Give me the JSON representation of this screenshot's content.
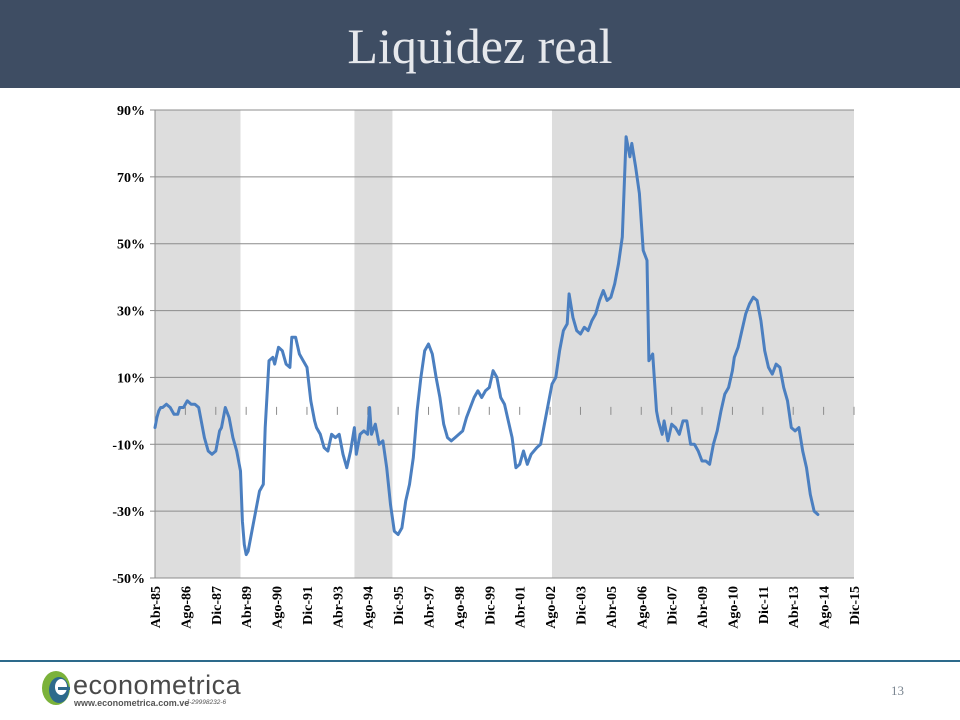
{
  "slide": {
    "title": "Liquidez real",
    "page_number": "13"
  },
  "logo": {
    "name": "econometrica",
    "url": "www.econometrica.com.ve",
    "rif": "J-29998232-6"
  },
  "colors": {
    "header": "#3e4d63",
    "line": "#4b7fc0",
    "shade": "#dddddd",
    "grid": "#8c8c8c",
    "footer_rule": "#2d6a8b"
  },
  "chart_data": {
    "type": "line",
    "x_start": "1985-04",
    "x_end": "2015-12",
    "ylim": [
      -50,
      90
    ],
    "yticks": [
      -50,
      -30,
      -10,
      10,
      30,
      50,
      70,
      90
    ],
    "ytick_labels": [
      "-50%",
      "-30%",
      "-10%",
      "10%",
      "30%",
      "50%",
      "70%",
      "90%"
    ],
    "xtick_labels": [
      "Abr-85",
      "Ago-86",
      "Dic-87",
      "Abr-89",
      "Ago-90",
      "Dic-91",
      "Abr-93",
      "Ago-94",
      "Dic-95",
      "Abr-97",
      "Ago-98",
      "Dic-99",
      "Abr-01",
      "Ago-02",
      "Dic-03",
      "Abr-05",
      "Ago-06",
      "Dic-07",
      "Abr-09",
      "Ago-10",
      "Dic-11",
      "Abr-13",
      "Ago-14",
      "Dic-15"
    ],
    "xtick_dates": [
      "1985-04",
      "1986-08",
      "1987-12",
      "1989-04",
      "1990-08",
      "1991-12",
      "1993-04",
      "1994-08",
      "1995-12",
      "1997-04",
      "1998-08",
      "1999-12",
      "2001-04",
      "2002-08",
      "2003-12",
      "2005-04",
      "2006-08",
      "2007-12",
      "2009-04",
      "2010-08",
      "2011-12",
      "2013-04",
      "2014-08",
      "2015-12"
    ],
    "shaded_periods": [
      [
        "1985-04",
        "1989-01"
      ],
      [
        "1994-01",
        "1995-09"
      ],
      [
        "2002-09",
        "2015-12"
      ]
    ],
    "grid": true,
    "legend": "none",
    "series": [
      {
        "points": [
          [
            "1985-04",
            -5
          ],
          [
            "1985-05",
            -2
          ],
          [
            "1985-06",
            0
          ],
          [
            "1985-07",
            1
          ],
          [
            "1985-08",
            1
          ],
          [
            "1985-10",
            2
          ],
          [
            "1985-12",
            1
          ],
          [
            "1986-02",
            -1
          ],
          [
            "1986-04",
            -1
          ],
          [
            "1986-05",
            1
          ],
          [
            "1986-07",
            1
          ],
          [
            "1986-09",
            3
          ],
          [
            "1986-11",
            2
          ],
          [
            "1987-01",
            2
          ],
          [
            "1987-03",
            1
          ],
          [
            "1987-04",
            -2
          ],
          [
            "1987-06",
            -8
          ],
          [
            "1987-08",
            -12
          ],
          [
            "1987-10",
            -13
          ],
          [
            "1987-12",
            -12
          ],
          [
            "1988-02",
            -6
          ],
          [
            "1988-03",
            -5
          ],
          [
            "1988-05",
            1
          ],
          [
            "1988-07",
            -2
          ],
          [
            "1988-09",
            -8
          ],
          [
            "1988-11",
            -12
          ],
          [
            "1989-01",
            -18
          ],
          [
            "1989-02",
            -33
          ],
          [
            "1989-03",
            -40
          ],
          [
            "1989-04",
            -43
          ],
          [
            "1989-05",
            -42
          ],
          [
            "1989-07",
            -36
          ],
          [
            "1989-09",
            -30
          ],
          [
            "1989-11",
            -24
          ],
          [
            "1990-01",
            -22
          ],
          [
            "1990-02",
            -5
          ],
          [
            "1990-04",
            15
          ],
          [
            "1990-06",
            16
          ],
          [
            "1990-07",
            14
          ],
          [
            "1990-09",
            19
          ],
          [
            "1990-11",
            18
          ],
          [
            "1991-01",
            14
          ],
          [
            "1991-03",
            13
          ],
          [
            "1991-04",
            22
          ],
          [
            "1991-06",
            22
          ],
          [
            "1991-08",
            17
          ],
          [
            "1991-10",
            15
          ],
          [
            "1991-12",
            13
          ],
          [
            "1992-02",
            3
          ],
          [
            "1992-04",
            -3
          ],
          [
            "1992-05",
            -5
          ],
          [
            "1992-07",
            -7
          ],
          [
            "1992-09",
            -11
          ],
          [
            "1992-11",
            -12
          ],
          [
            "1993-01",
            -7
          ],
          [
            "1993-03",
            -8
          ],
          [
            "1993-05",
            -7
          ],
          [
            "1993-07",
            -13
          ],
          [
            "1993-09",
            -17
          ],
          [
            "1993-11",
            -12
          ],
          [
            "1994-01",
            -5
          ],
          [
            "1994-02",
            -13
          ],
          [
            "1994-04",
            -7
          ],
          [
            "1994-06",
            -6
          ],
          [
            "1994-08",
            -7
          ],
          [
            "1994-09",
            1
          ],
          [
            "1994-10",
            -7
          ],
          [
            "1994-12",
            -4
          ],
          [
            "1995-02",
            -10
          ],
          [
            "1995-04",
            -9
          ],
          [
            "1995-06",
            -17
          ],
          [
            "1995-08",
            -28
          ],
          [
            "1995-10",
            -36
          ],
          [
            "1995-12",
            -37
          ],
          [
            "1996-02",
            -35
          ],
          [
            "1996-04",
            -27
          ],
          [
            "1996-06",
            -22
          ],
          [
            "1996-08",
            -14
          ],
          [
            "1996-10",
            0
          ],
          [
            "1996-12",
            10
          ],
          [
            "1997-02",
            18
          ],
          [
            "1997-04",
            20
          ],
          [
            "1997-06",
            17
          ],
          [
            "1997-08",
            10
          ],
          [
            "1997-10",
            4
          ],
          [
            "1997-12",
            -4
          ],
          [
            "1998-02",
            -8
          ],
          [
            "1998-04",
            -9
          ],
          [
            "1998-06",
            -8
          ],
          [
            "1998-08",
            -7
          ],
          [
            "1998-10",
            -6
          ],
          [
            "1998-12",
            -2
          ],
          [
            "1999-02",
            1
          ],
          [
            "1999-04",
            4
          ],
          [
            "1999-06",
            6
          ],
          [
            "1999-08",
            4
          ],
          [
            "1999-10",
            6
          ],
          [
            "1999-12",
            7
          ],
          [
            "2000-02",
            12
          ],
          [
            "2000-04",
            10
          ],
          [
            "2000-06",
            4
          ],
          [
            "2000-08",
            2
          ],
          [
            "2000-10",
            -3
          ],
          [
            "2000-12",
            -8
          ],
          [
            "2001-02",
            -17
          ],
          [
            "2001-04",
            -16
          ],
          [
            "2001-06",
            -12
          ],
          [
            "2001-08",
            -16
          ],
          [
            "2001-10",
            -13
          ],
          [
            "2002-01",
            -11
          ],
          [
            "2002-03",
            -10
          ],
          [
            "2002-05",
            -4
          ],
          [
            "2002-07",
            2
          ],
          [
            "2002-09",
            8
          ],
          [
            "2002-11",
            10
          ],
          [
            "2003-01",
            18
          ],
          [
            "2003-03",
            24
          ],
          [
            "2003-05",
            26
          ],
          [
            "2003-06",
            35
          ],
          [
            "2003-08",
            28
          ],
          [
            "2003-10",
            24
          ],
          [
            "2003-12",
            23
          ],
          [
            "2004-02",
            25
          ],
          [
            "2004-04",
            24
          ],
          [
            "2004-06",
            27
          ],
          [
            "2004-08",
            29
          ],
          [
            "2004-10",
            33
          ],
          [
            "2004-12",
            36
          ],
          [
            "2005-02",
            33
          ],
          [
            "2005-04",
            34
          ],
          [
            "2005-06",
            38
          ],
          [
            "2005-08",
            44
          ],
          [
            "2005-10",
            52
          ],
          [
            "2005-12",
            82
          ],
          [
            "2006-02",
            76
          ],
          [
            "2006-03",
            80
          ],
          [
            "2006-05",
            73
          ],
          [
            "2006-07",
            65
          ],
          [
            "2006-09",
            48
          ],
          [
            "2006-11",
            45
          ],
          [
            "2006-12",
            15
          ],
          [
            "2007-02",
            17
          ],
          [
            "2007-04",
            0
          ],
          [
            "2007-05",
            -3
          ],
          [
            "2007-07",
            -7
          ],
          [
            "2007-08",
            -3
          ],
          [
            "2007-10",
            -9
          ],
          [
            "2007-12",
            -4
          ],
          [
            "2008-02",
            -5
          ],
          [
            "2008-04",
            -7
          ],
          [
            "2008-06",
            -3
          ],
          [
            "2008-08",
            -3
          ],
          [
            "2008-10",
            -10
          ],
          [
            "2008-12",
            -10
          ],
          [
            "2009-02",
            -12
          ],
          [
            "2009-04",
            -15
          ],
          [
            "2009-06",
            -15
          ],
          [
            "2009-08",
            -16
          ],
          [
            "2009-10",
            -10
          ],
          [
            "2009-12",
            -6
          ],
          [
            "2010-02",
            0
          ],
          [
            "2010-04",
            5
          ],
          [
            "2010-06",
            7
          ],
          [
            "2010-08",
            12
          ],
          [
            "2010-09",
            16
          ],
          [
            "2010-11",
            19
          ],
          [
            "2011-01",
            24
          ],
          [
            "2011-03",
            29
          ],
          [
            "2011-05",
            32
          ],
          [
            "2011-07",
            34
          ],
          [
            "2011-09",
            33
          ],
          [
            "2011-11",
            27
          ],
          [
            "2012-01",
            18
          ],
          [
            "2012-03",
            13
          ],
          [
            "2012-05",
            11
          ],
          [
            "2012-07",
            14
          ],
          [
            "2012-09",
            13
          ],
          [
            "2012-11",
            7
          ],
          [
            "2013-01",
            3
          ],
          [
            "2013-03",
            -5
          ],
          [
            "2013-05",
            -6
          ],
          [
            "2013-07",
            -5
          ],
          [
            "2013-09",
            -12
          ],
          [
            "2013-11",
            -17
          ],
          [
            "2014-01",
            -25
          ],
          [
            "2014-03",
            -30
          ],
          [
            "2014-05",
            -31
          ]
        ]
      }
    ]
  }
}
